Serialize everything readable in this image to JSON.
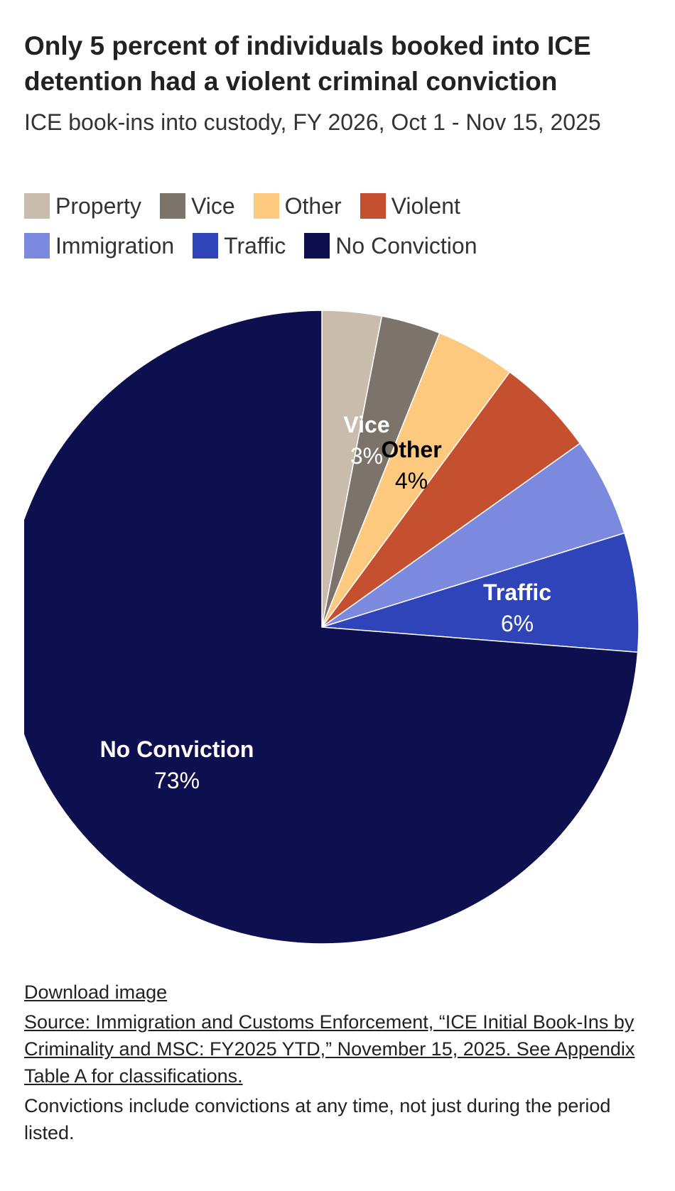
{
  "title": "Only 5 percent of individuals booked into ICE detention had a violent criminal conviction",
  "subtitle": "ICE book-ins into custody, FY 2026, Oct 1 - Nov 15, 2025",
  "legend": [
    {
      "label": "Property",
      "color": "#c9bcad"
    },
    {
      "label": "Vice",
      "color": "#7c746b"
    },
    {
      "label": "Other",
      "color": "#fdc97f"
    },
    {
      "label": "Violent",
      "color": "#c4502f"
    },
    {
      "label": "Immigration",
      "color": "#7b89de"
    },
    {
      "label": "Traffic",
      "color": "#2f44b8"
    },
    {
      "label": "No Conviction",
      "color": "#0e0f4f"
    }
  ],
  "chart_data": {
    "type": "pie",
    "title": "Only 5 percent of individuals booked into ICE detention had a violent criminal conviction",
    "subtitle": "ICE book-ins into custody, FY 2026, Oct 1 - Nov 15, 2025",
    "start": "12 o'clock, clockwise",
    "slices": [
      {
        "name": "Property",
        "value": 3,
        "color": "#c9bcad",
        "label_shown": false
      },
      {
        "name": "Vice",
        "value": 3,
        "color": "#7c746b",
        "label_shown": true,
        "label_text": "Vice",
        "value_text": "3%",
        "label_color": "#ffffff"
      },
      {
        "name": "Other",
        "value": 4,
        "color": "#fdc97f",
        "label_shown": true,
        "label_text": "Other",
        "value_text": "4%",
        "label_color": "#000000"
      },
      {
        "name": "Violent",
        "value": 5,
        "color": "#c4502f",
        "label_shown": false
      },
      {
        "name": "Immigration",
        "value": 5,
        "color": "#7b89de",
        "label_shown": false
      },
      {
        "name": "Traffic",
        "value": 6,
        "color": "#2f44b8",
        "label_shown": true,
        "label_text": "Traffic",
        "value_text": "6%",
        "label_color": "#ffffff"
      },
      {
        "name": "No Conviction",
        "value": 73,
        "color": "#0e0f4f",
        "label_shown": true,
        "label_text": "No Conviction",
        "value_text": "73%",
        "label_color": "#ffffff"
      }
    ],
    "legend_placement": "top"
  },
  "footer": {
    "download": "Download image",
    "source": "Source: Immigration and Customs Enforcement, “ICE Initial Book-Ins by Criminality and MSC: FY2025 YTD,” November 15, 2025. See Appendix Table A for classifications.",
    "note": "Convictions include convictions at any time, not just during the period listed."
  }
}
